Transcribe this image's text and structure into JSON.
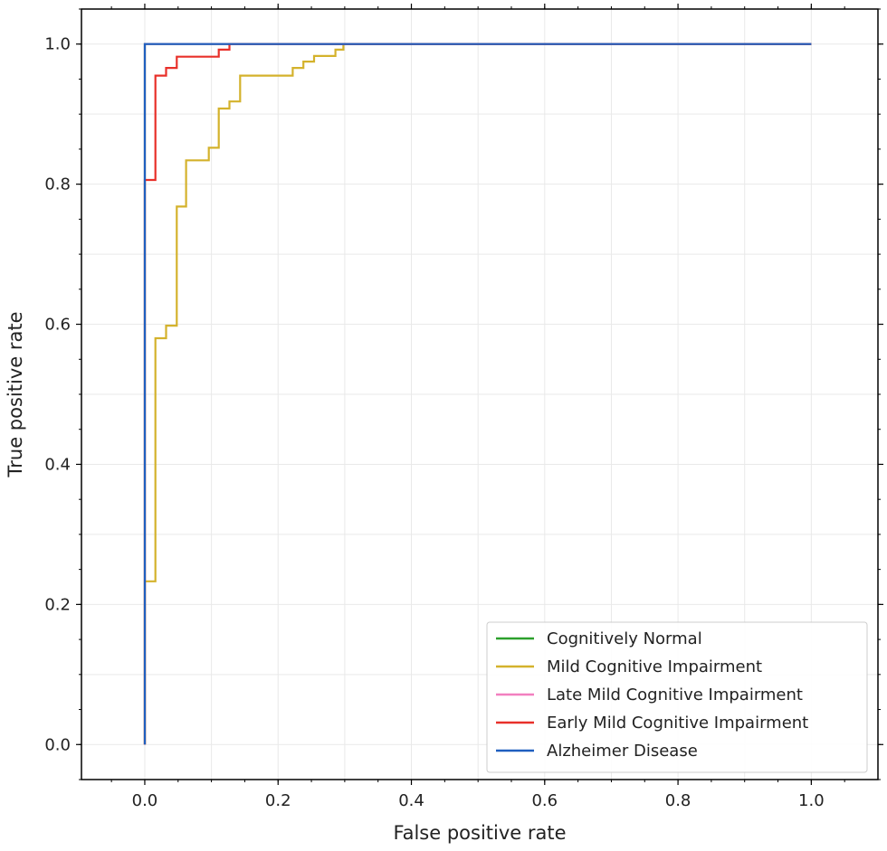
{
  "chart_data": {
    "type": "line",
    "title": "",
    "xlabel": "False positive rate",
    "ylabel": "True positive rate",
    "xlim": [
      -0.095,
      1.1
    ],
    "ylim": [
      -0.05,
      1.05
    ],
    "x_ticks": [
      0.0,
      0.2,
      0.4,
      0.6,
      0.8,
      1.0
    ],
    "y_ticks": [
      0.0,
      0.2,
      0.4,
      0.6,
      0.8,
      1.0
    ],
    "x_tick_labels": [
      "0.0",
      "0.2",
      "0.4",
      "0.6",
      "0.8",
      "1.0"
    ],
    "y_tick_labels": [
      "0.0",
      "0.2",
      "0.4",
      "0.6",
      "0.8",
      "1.0"
    ],
    "grid": true,
    "legend_position": "bottom-right",
    "series": [
      {
        "name": "Cognitively Normal",
        "color": "#2ca02c",
        "x": [
          0.0,
          0.0,
          1.0
        ],
        "y": [
          0.0,
          1.0,
          1.0
        ]
      },
      {
        "name": "Mild Cognitive Impairment",
        "color": "#d4b22c",
        "x": [
          0.0,
          0.0,
          0.016,
          0.016,
          0.032,
          0.032,
          0.048,
          0.048,
          0.062,
          0.062,
          0.096,
          0.096,
          0.111,
          0.111,
          0.127,
          0.127,
          0.143,
          0.143,
          0.222,
          0.222,
          0.238,
          0.238,
          0.254,
          0.254,
          0.286,
          0.286,
          0.298,
          0.298,
          1.0
        ],
        "y": [
          0.0,
          0.233,
          0.233,
          0.58,
          0.58,
          0.598,
          0.598,
          0.768,
          0.768,
          0.834,
          0.834,
          0.852,
          0.852,
          0.908,
          0.908,
          0.918,
          0.918,
          0.955,
          0.955,
          0.966,
          0.966,
          0.975,
          0.975,
          0.983,
          0.983,
          0.992,
          0.992,
          1.0,
          1.0
        ]
      },
      {
        "name": "Late Mild Cognitive Impairment",
        "color": "#f27fbf",
        "x": [
          0.0,
          0.0,
          1.0
        ],
        "y": [
          0.0,
          1.0,
          1.0
        ]
      },
      {
        "name": "Early Mild Cognitive Impairment",
        "color": "#e8302a",
        "x": [
          0.0,
          0.0,
          0.016,
          0.016,
          0.032,
          0.032,
          0.048,
          0.048,
          0.111,
          0.111,
          0.127,
          0.127,
          1.0
        ],
        "y": [
          0.0,
          0.806,
          0.806,
          0.955,
          0.955,
          0.966,
          0.966,
          0.982,
          0.982,
          0.992,
          0.992,
          1.0,
          1.0
        ]
      },
      {
        "name": "Alzheimer Disease",
        "color": "#1f5fbf",
        "x": [
          0.0,
          0.0,
          1.0
        ],
        "y": [
          0.0,
          1.0,
          1.0
        ]
      }
    ]
  }
}
